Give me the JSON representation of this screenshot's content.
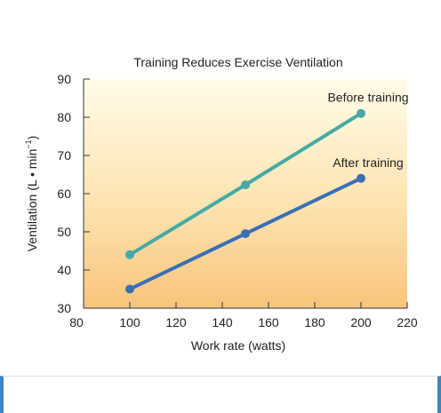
{
  "chart_data": {
    "type": "line",
    "title": "Training Reduces Exercise Ventilation",
    "xlabel": "Work rate (watts)",
    "ylabel_main": "Ventilation (L • min",
    "ylabel_sup": "−1",
    "ylabel_end": ")",
    "xlim": [
      80,
      220
    ],
    "ylim": [
      30,
      90
    ],
    "xticks": [
      80,
      100,
      120,
      140,
      160,
      180,
      200,
      220
    ],
    "yticks": [
      30,
      40,
      50,
      60,
      70,
      80,
      90
    ],
    "grid": false,
    "series": [
      {
        "name": "Before training",
        "color": "#45aaa6",
        "x": [
          100,
          150,
          200
        ],
        "y": [
          44,
          62.3,
          81
        ]
      },
      {
        "name": "After training",
        "color": "#3a6fb5",
        "x": [
          100,
          150,
          200
        ],
        "y": [
          35,
          49.5,
          64
        ]
      }
    ]
  }
}
